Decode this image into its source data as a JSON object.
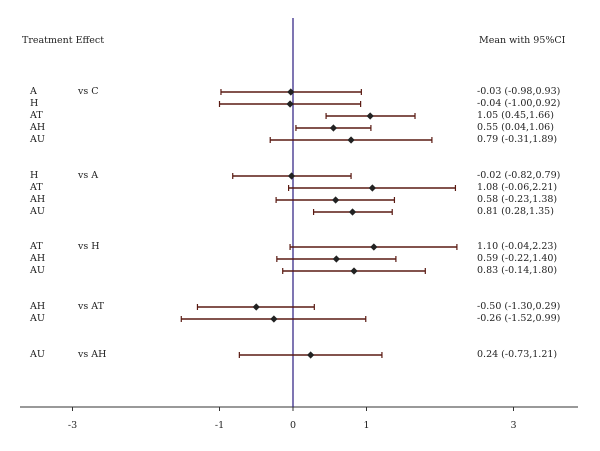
{
  "chart_data": {
    "type": "forest",
    "header_left": "Treatment Effect",
    "header_right": "Mean with 95%CI",
    "xticks": [
      -3,
      -1,
      0,
      1,
      3
    ],
    "groups": [
      {
        "comparison": "vs C",
        "rows": [
          {
            "label": "A",
            "mean": -0.03,
            "lo": -0.98,
            "hi": 0.93,
            "ci_text": "-0.03 (-0.98,0.93)"
          },
          {
            "label": "H",
            "mean": -0.04,
            "lo": -1.0,
            "hi": 0.92,
            "ci_text": "-0.04 (-1.00,0.92)"
          },
          {
            "label": "AT",
            "mean": 1.05,
            "lo": 0.45,
            "hi": 1.66,
            "ci_text": "1.05 (0.45,1.66)"
          },
          {
            "label": "AH",
            "mean": 0.55,
            "lo": 0.04,
            "hi": 1.06,
            "ci_text": "0.55 (0.04,1.06)"
          },
          {
            "label": "AU",
            "mean": 0.79,
            "lo": -0.31,
            "hi": 1.89,
            "ci_text": "0.79 (-0.31,1.89)"
          }
        ]
      },
      {
        "comparison": "vs A",
        "rows": [
          {
            "label": "H",
            "mean": -0.02,
            "lo": -0.82,
            "hi": 0.79,
            "ci_text": "-0.02 (-0.82,0.79)"
          },
          {
            "label": "AT",
            "mean": 1.08,
            "lo": -0.06,
            "hi": 2.21,
            "ci_text": "1.08 (-0.06,2.21)"
          },
          {
            "label": "AH",
            "mean": 0.58,
            "lo": -0.23,
            "hi": 1.38,
            "ci_text": "0.58 (-0.23,1.38)"
          },
          {
            "label": "AU",
            "mean": 0.81,
            "lo": 0.28,
            "hi": 1.35,
            "ci_text": "0.81 (0.28,1.35)"
          }
        ]
      },
      {
        "comparison": "vs H",
        "rows": [
          {
            "label": "AT",
            "mean": 1.1,
            "lo": -0.04,
            "hi": 2.23,
            "ci_text": "1.10 (-0.04,2.23)"
          },
          {
            "label": "AH",
            "mean": 0.59,
            "lo": -0.22,
            "hi": 1.4,
            "ci_text": "0.59 (-0.22,1.40)"
          },
          {
            "label": "AU",
            "mean": 0.83,
            "lo": -0.14,
            "hi": 1.8,
            "ci_text": "0.83 (-0.14,1.80)"
          }
        ]
      },
      {
        "comparison": "vs AT",
        "rows": [
          {
            "label": "AH",
            "mean": -0.5,
            "lo": -1.3,
            "hi": 0.29,
            "ci_text": "-0.50 (-1.30,0.29)"
          },
          {
            "label": "AU",
            "mean": -0.26,
            "lo": -1.52,
            "hi": 0.99,
            "ci_text": "-0.26 (-1.52,0.99)"
          }
        ]
      },
      {
        "comparison": "vs AH",
        "rows": [
          {
            "label": "AU",
            "mean": 0.24,
            "lo": -0.73,
            "hi": 1.21,
            "ci_text": "0.24 (-0.73,1.21)"
          }
        ]
      }
    ],
    "colors": {
      "ci_line": "#5a1a12",
      "point": "#222222",
      "zero_line": "#2a1a80",
      "axis": "#333333"
    }
  }
}
